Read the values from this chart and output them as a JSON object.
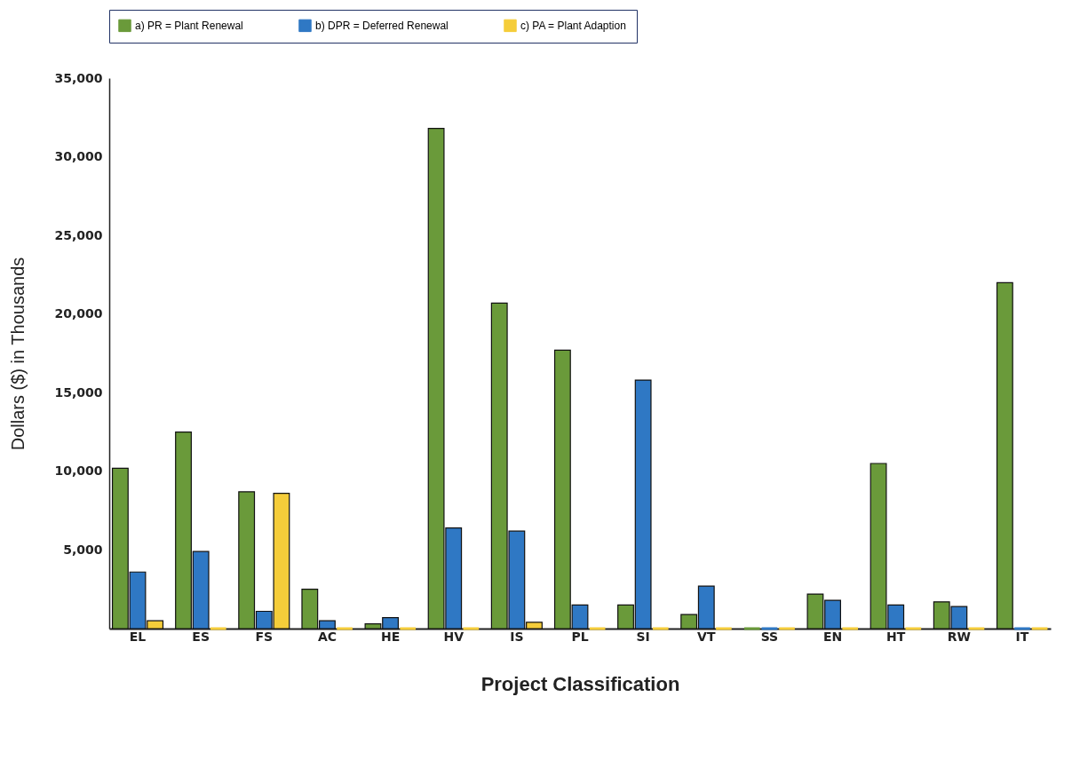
{
  "chart_data": {
    "type": "bar",
    "xlabel": "Project Classification",
    "ylabel": "Dollars ($) in Thousands",
    "categories": [
      "EL",
      "ES",
      "FS",
      "AC",
      "HE",
      "HV",
      "IS",
      "PL",
      "SI",
      "VT",
      "SS",
      "EN",
      "HT",
      "RW",
      "IT"
    ],
    "series": [
      {
        "name": "a) PR = Plant Renewal",
        "color": "#6a9a3a",
        "values": [
          10200,
          12500,
          8700,
          2500,
          300,
          31800,
          20700,
          17700,
          1500,
          900,
          0,
          2200,
          10500,
          1700,
          22000
        ]
      },
      {
        "name": "b) DPR = Deferred Renewal",
        "color": "#2f78c4",
        "values": [
          3600,
          4900,
          1100,
          500,
          700,
          6400,
          6200,
          1500,
          15800,
          2700,
          0,
          1800,
          1500,
          1400,
          0
        ]
      },
      {
        "name": "c) PA = Plant Adaption",
        "color": "#f5cd3a",
        "values": [
          500,
          0,
          8600,
          0,
          0,
          0,
          400,
          0,
          0,
          0,
          0,
          0,
          0,
          0,
          0
        ]
      }
    ],
    "ylim": [
      0,
      35000
    ],
    "yticks": [
      {
        "value": 5000,
        "label": "5,000"
      },
      {
        "value": 10000,
        "label": "10,000"
      },
      {
        "value": 15000,
        "label": "15,000"
      },
      {
        "value": 20000,
        "label": "20,000"
      },
      {
        "value": 25000,
        "label": "25,000"
      },
      {
        "value": 30000,
        "label": "30,000"
      },
      {
        "value": 35000,
        "label": "35,000"
      }
    ],
    "grid": false,
    "legend": "top left"
  }
}
